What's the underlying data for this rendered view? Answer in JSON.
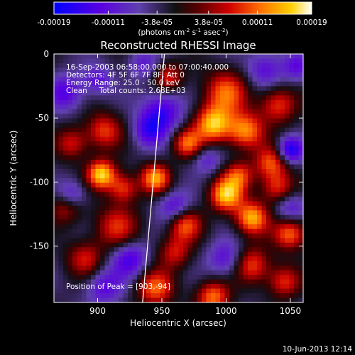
{
  "colorbar": {
    "ticks": [
      "-0.00019",
      "-0.00011",
      "-3.8e-05",
      "3.8e-05",
      "0.00011",
      "0.00019"
    ],
    "unit_main": "(photons cm",
    "unit_exp1": "-2",
    "unit_mid": " s",
    "unit_exp2": "-1",
    "unit_tail": " asec",
    "unit_exp3": "-2",
    "unit_close": ")"
  },
  "title": "Reconstructed RHESSI Image",
  "annotations": {
    "time": "16-Sep-2003 06:58:00.000 to 07:00:40.000",
    "detectors": "Detectors: 4F 5F 6F 7F 8F, Att 0",
    "energy": "Energy Range: 25.0 - 50.0 keV",
    "clean": "Clean     Total counts: 2.68E+03",
    "peak": "Position of Peak = [903,-94]"
  },
  "footer": {
    "timestamp": "10-Jun-2013 12:14"
  },
  "chart_data": {
    "type": "heatmap",
    "title": "Reconstructed RHESSI Image",
    "xlabel": "Heliocentric X (arcsec)",
    "ylabel": "Heliocentric Y (arcsec)",
    "xlim": [
      866,
      1060
    ],
    "ylim": [
      -194,
      0
    ],
    "x_ticks": [
      900,
      950,
      1000,
      1050
    ],
    "y_ticks": [
      0,
      -50,
      -100,
      -150
    ],
    "colorbar_range": [
      -0.00019,
      0.00019
    ],
    "colormap": "rainbow-hot",
    "limb_line": [
      [
        952,
        0
      ],
      [
        935,
        -194
      ]
    ],
    "peak_position": [
      903,
      -94
    ],
    "sources": [
      [
        955,
        -18,
        0.55,
        8
      ],
      [
        1000,
        -30,
        0.7,
        12
      ],
      [
        1040,
        -40,
        0.6,
        10
      ],
      [
        990,
        -55,
        0.95,
        10
      ],
      [
        1015,
        -60,
        0.8,
        10
      ],
      [
        970,
        -70,
        0.7,
        8
      ],
      [
        905,
        -60,
        0.6,
        10
      ],
      [
        880,
        -70,
        0.5,
        9
      ],
      [
        903,
        -94,
        1.0,
        8
      ],
      [
        945,
        -97,
        0.85,
        8
      ],
      [
        1010,
        -95,
        0.6,
        8
      ],
      [
        1000,
        -110,
        0.95,
        9
      ],
      [
        1040,
        -105,
        0.6,
        9
      ],
      [
        915,
        -135,
        0.55,
        12
      ],
      [
        1020,
        -128,
        0.9,
        9
      ],
      [
        968,
        -133,
        0.7,
        9
      ],
      [
        1050,
        -140,
        0.75,
        9
      ],
      [
        890,
        -160,
        0.5,
        10
      ],
      [
        1020,
        -165,
        0.65,
        10
      ],
      [
        945,
        -183,
        0.7,
        10
      ],
      [
        990,
        -190,
        0.75,
        9
      ],
      [
        1045,
        -178,
        0.55,
        9
      ],
      [
        920,
        -105,
        0.6,
        8
      ],
      [
        1035,
        -85,
        0.65,
        9
      ],
      [
        960,
        -155,
        0.5,
        9
      ],
      [
        875,
        -120,
        0.45,
        9
      ]
    ],
    "sinks": [
      [
        950,
        -45,
        0.6,
        11
      ],
      [
        1050,
        -75,
        0.75,
        7
      ],
      [
        940,
        -60,
        0.5,
        9
      ],
      [
        1030,
        -12,
        0.45,
        10
      ],
      [
        875,
        -30,
        0.5,
        10
      ],
      [
        880,
        -110,
        0.45,
        8
      ],
      [
        960,
        -120,
        0.5,
        9
      ],
      [
        1050,
        -120,
        0.45,
        9
      ],
      [
        925,
        -160,
        0.55,
        10
      ],
      [
        1000,
        -160,
        0.45,
        10
      ],
      [
        985,
        -82,
        0.35,
        8
      ],
      [
        905,
        -182,
        0.45,
        10
      ],
      [
        1055,
        -10,
        0.4,
        8
      ],
      [
        900,
        -20,
        0.4,
        8
      ],
      [
        935,
        -8,
        0.35,
        8
      ]
    ]
  }
}
